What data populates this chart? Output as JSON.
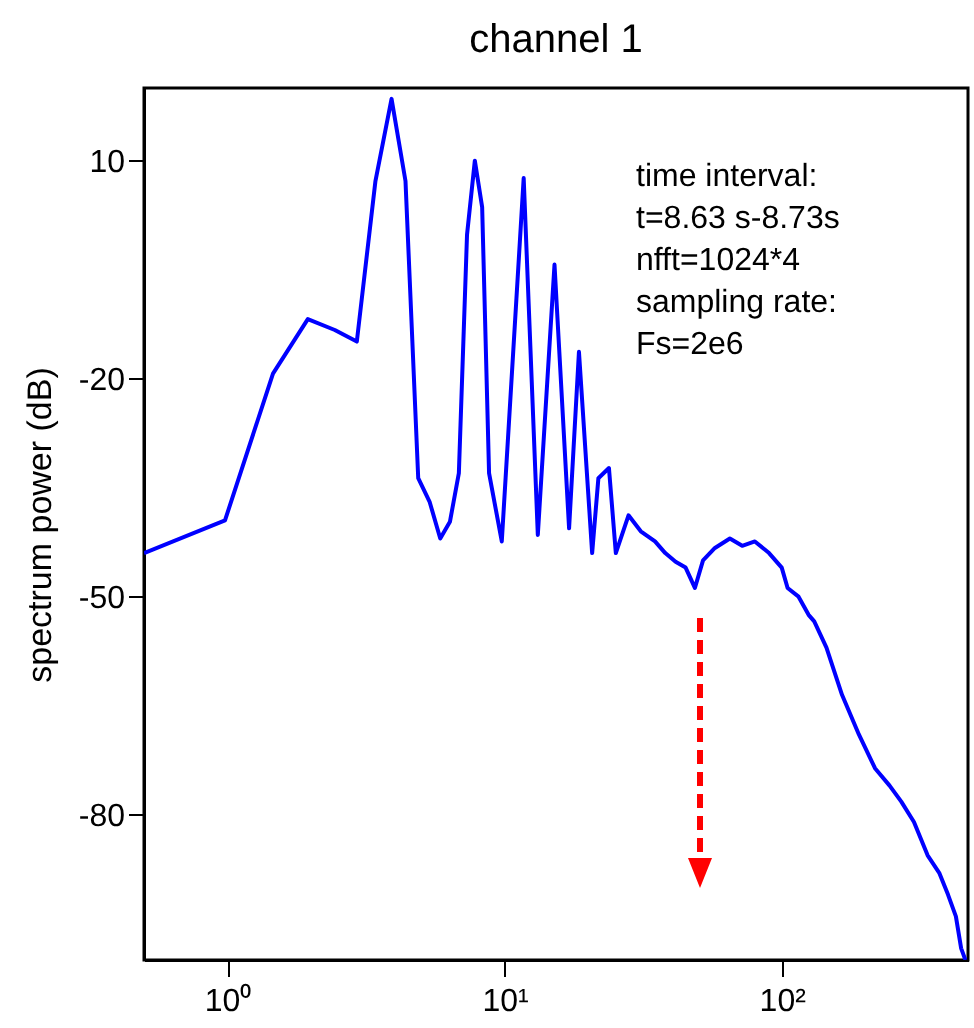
{
  "chart_data": {
    "type": "line",
    "title": "channel 1",
    "ylabel": "spectrum power (dB)",
    "log": "x",
    "xlim": [
      0.5,
      470
    ],
    "ylim": [
      -100,
      20
    ],
    "xticks": [
      {
        "value": 1,
        "label": "10⁰"
      },
      {
        "value": 10,
        "label": "10¹"
      },
      {
        "value": 100,
        "label": "10²"
      }
    ],
    "yticks": [
      10,
      -20,
      -50,
      -80
    ],
    "grid": false,
    "annotations": [
      "time interval:",
      "t=8.63 s-8.73s",
      "nfft=1024*4",
      "sampling rate:",
      "Fs=2e6"
    ],
    "series": [
      {
        "color": "#0000ff",
        "x": [
          0.5,
          0.98,
          1.46,
          1.95,
          2.44,
          2.93,
          3.42,
          3.91,
          4.39,
          4.88,
          5.37,
          5.86,
          6.35,
          6.84,
          7.32,
          7.81,
          8.3,
          8.79,
          9.77,
          11.72,
          13.18,
          15.14,
          17.09,
          18.55,
          20.7,
          21.8,
          23.8,
          25.2,
          28,
          31,
          34.9,
          38,
          41.4,
          45,
          48.6,
          52,
          57.4,
          65,
          72,
          80,
          90,
          100,
          105,
          115,
          125,
          131,
          145,
          165,
          190,
          217,
          245,
          270,
          300,
          336,
          370,
          398,
          425,
          444,
          460
        ],
        "values": [
          -44,
          -39.5,
          -19.3,
          -11.8,
          -13.3,
          -14.9,
          7.2,
          18.5,
          7.2,
          -33.7,
          -37,
          -42,
          -39.7,
          -33,
          -0.2,
          10,
          3.6,
          -33,
          -42.4,
          7.6,
          -41.5,
          -4.3,
          -40.6,
          -16.3,
          -44,
          -33.7,
          -32.3,
          -44,
          -38.8,
          -41,
          -42.4,
          -44,
          -45.2,
          -46,
          -48.8,
          -45,
          -43.3,
          -42,
          -43,
          -42.4,
          -44,
          -46,
          -48.8,
          -50,
          -52.5,
          -53.4,
          -57,
          -63.5,
          -69,
          -73.6,
          -76,
          -78.2,
          -81,
          -85.6,
          -88,
          -91,
          -94,
          -98.4,
          -100
        ]
      }
    ]
  }
}
